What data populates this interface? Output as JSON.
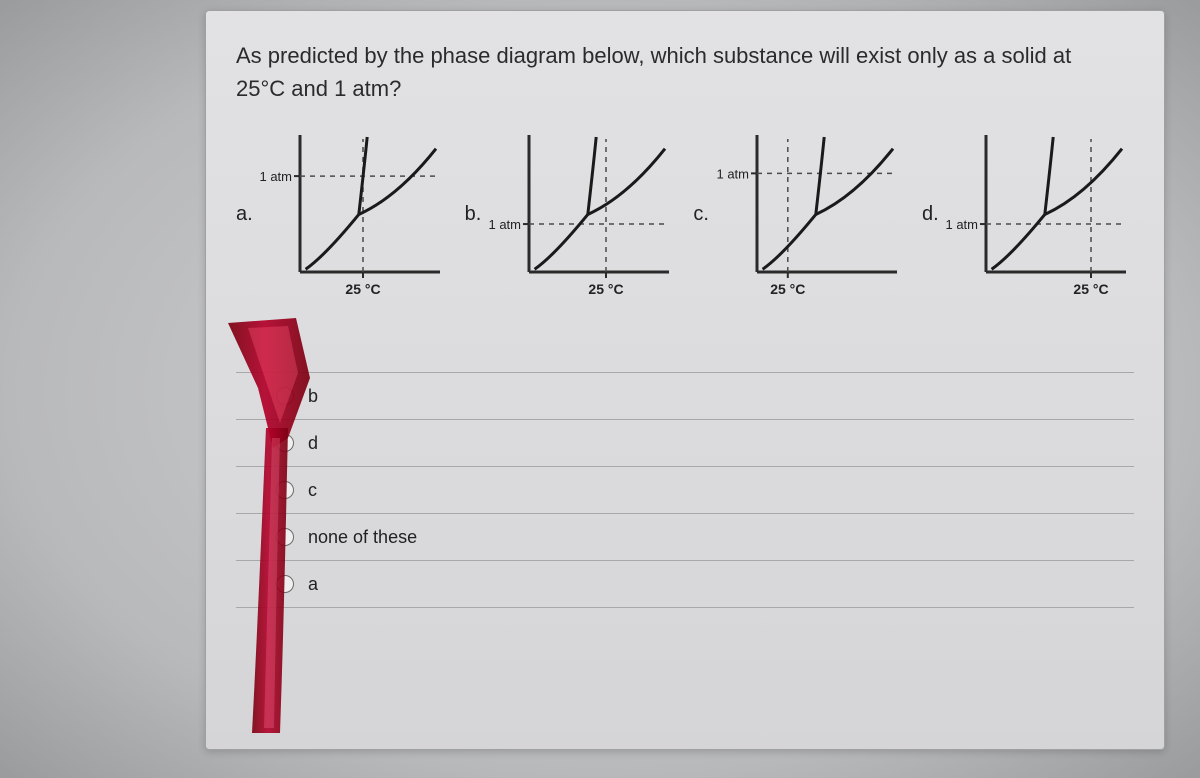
{
  "question_line1": "As predicted by the phase diagram below, which substance will exist only as a solid at",
  "question_line2": "25°C and 1 atm?",
  "diagrams": {
    "a": {
      "label": "a.",
      "atm_y": 0.7,
      "temp_x": 0.45
    },
    "b": {
      "label": "b.",
      "atm_y": 0.35,
      "temp_x": 0.55
    },
    "c": {
      "label": "c.",
      "atm_y": 0.72,
      "temp_x": 0.22
    },
    "d": {
      "label": "d.",
      "atm_y": 0.35,
      "temp_x": 0.75
    }
  },
  "axis_temp_label": "25 °C",
  "axis_press_label": "1 atm",
  "answers": {
    "opt1": "b",
    "opt2": "d",
    "opt3": "c",
    "opt4": "none of these",
    "opt5": "a"
  },
  "colors": {
    "axis": "#2a2a2a",
    "curve": "#1a1a1a",
    "dash": "#4a4a4a",
    "text": "#222222",
    "marker_dark": "#7a0010",
    "marker_mid": "#b3002a",
    "marker_hi": "#ff7a98"
  },
  "svg_dim": {
    "w": 190,
    "h": 175
  }
}
